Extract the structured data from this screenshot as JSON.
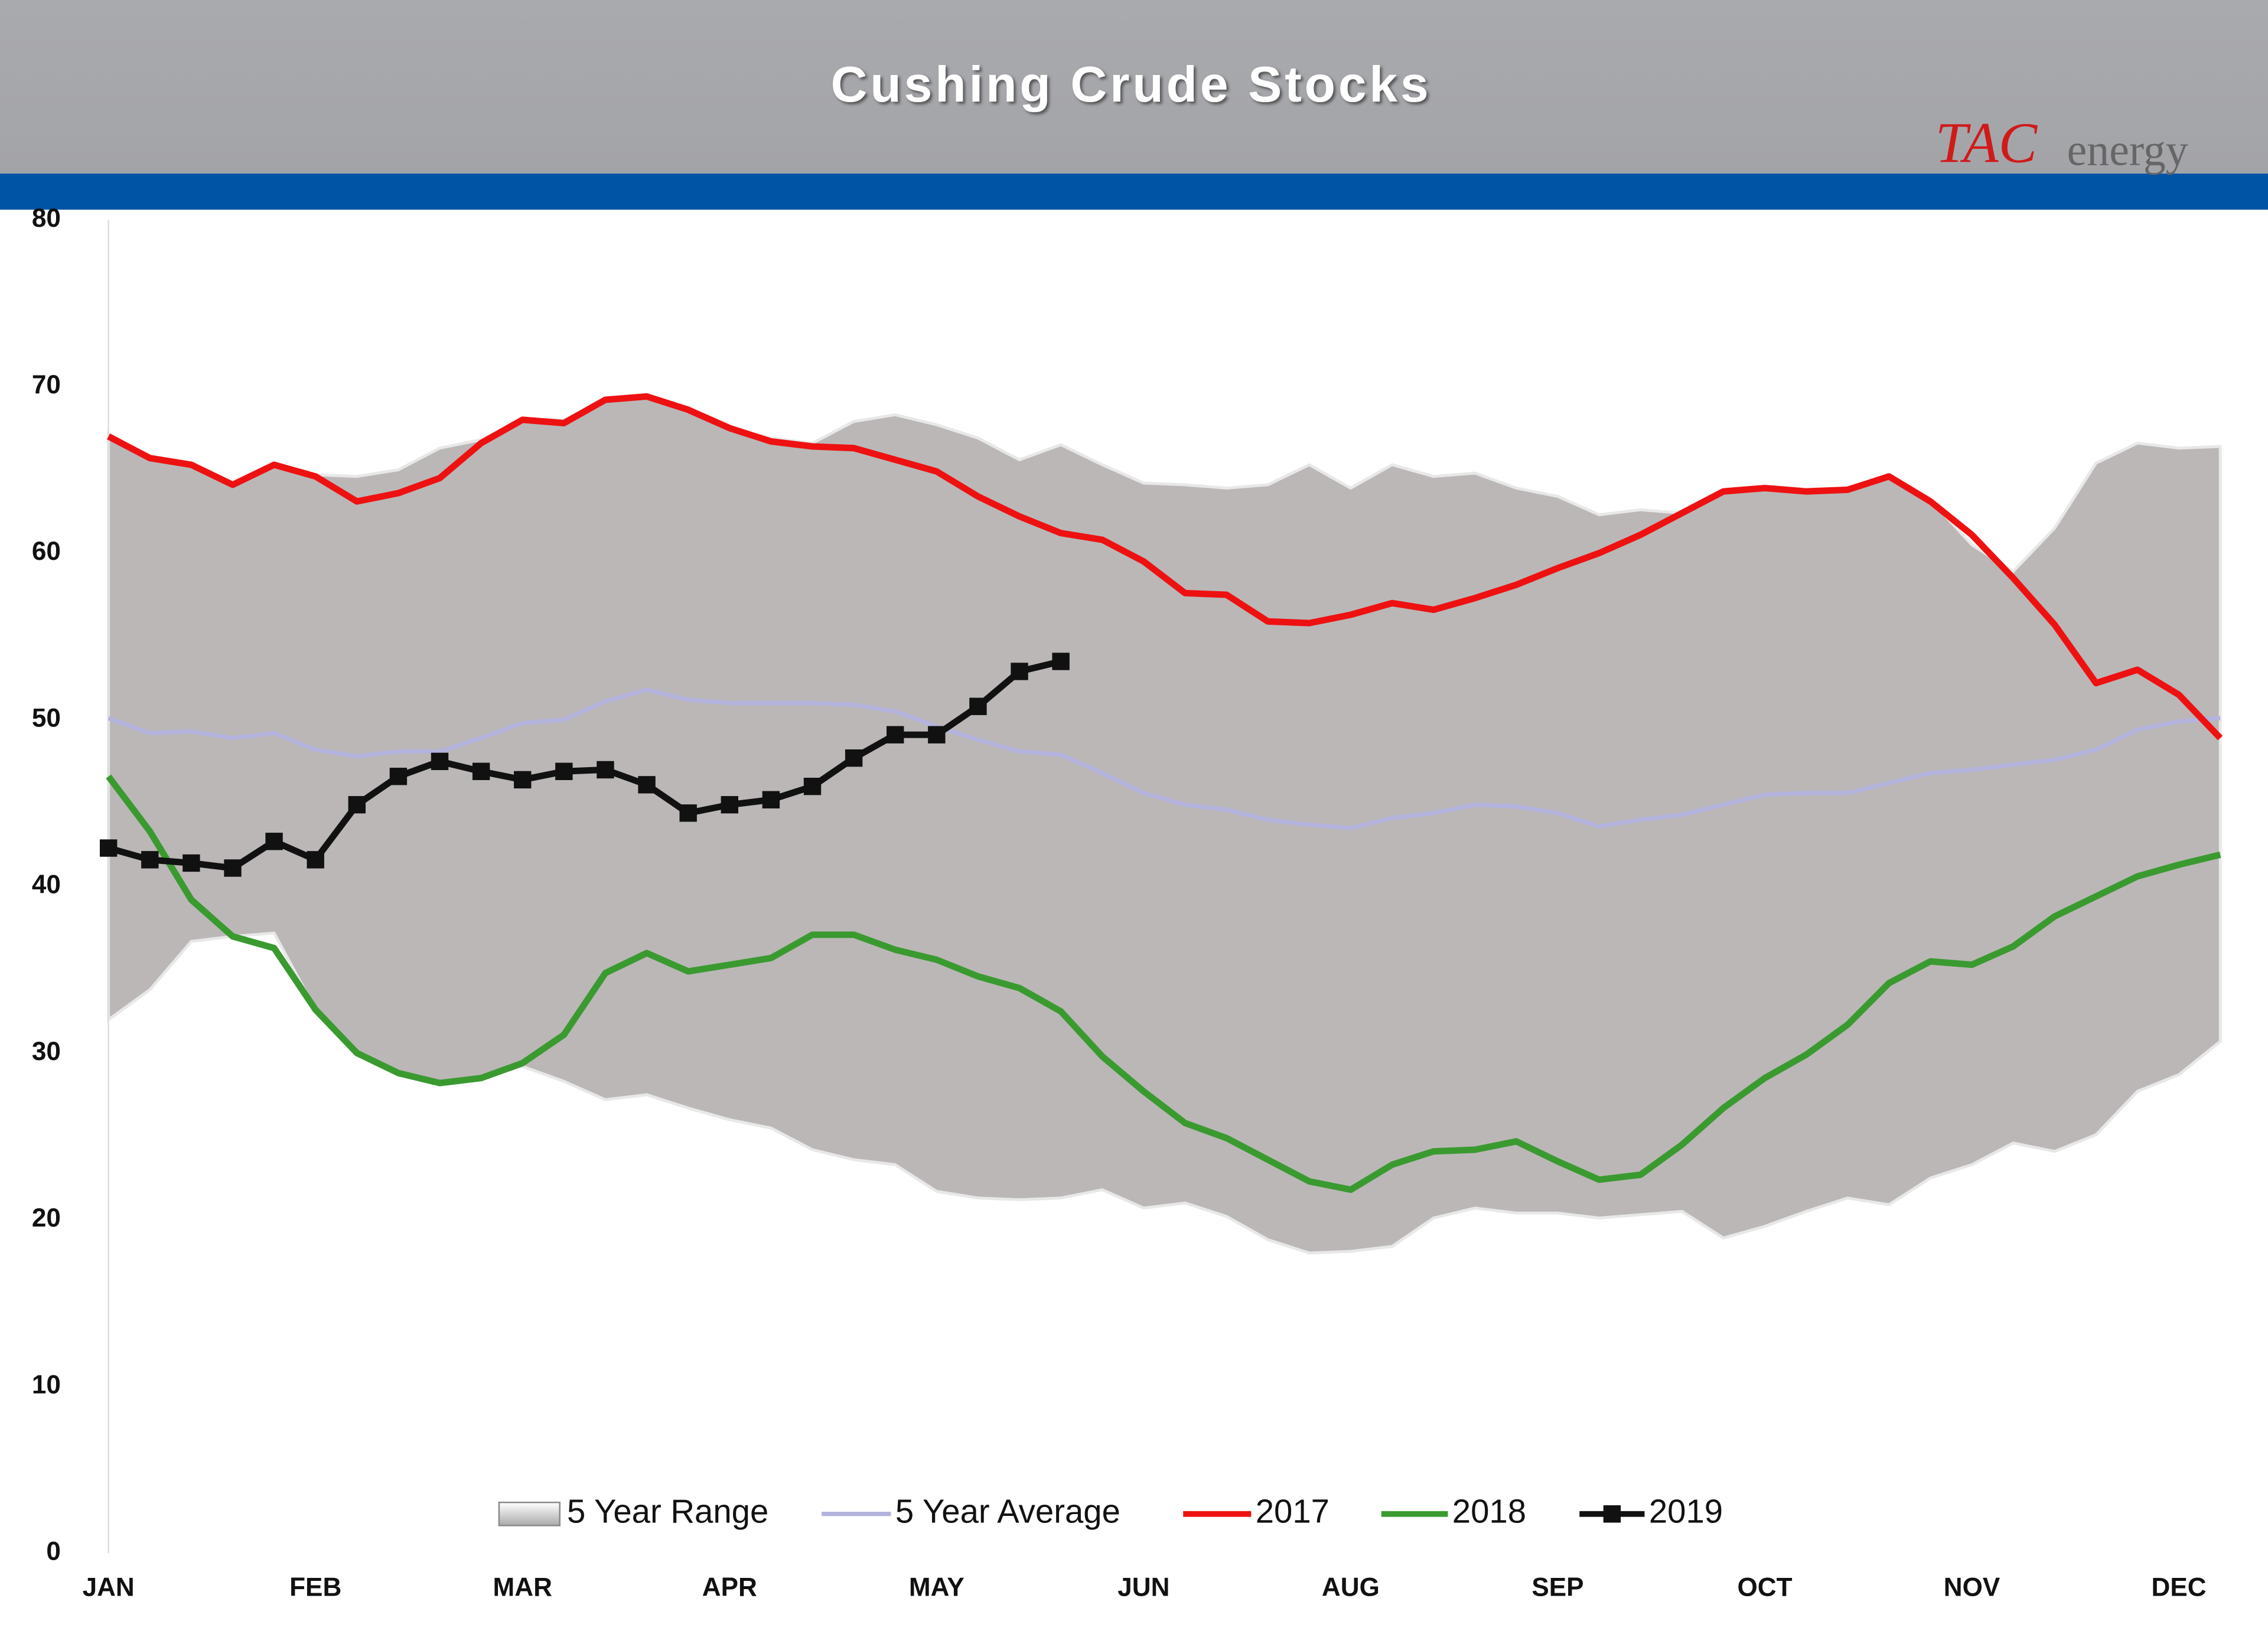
{
  "chart_data": {
    "type": "line",
    "title": "Cushing Crude Stocks",
    "logo": {
      "brand": "TAC",
      "suffix": "energy"
    },
    "categories": [
      "JAN",
      null,
      null,
      null,
      null,
      "FEB",
      null,
      null,
      null,
      null,
      "MAR",
      null,
      null,
      null,
      null,
      "APR",
      null,
      null,
      null,
      null,
      "MAY",
      null,
      null,
      null,
      null,
      "JUN",
      null,
      null,
      null,
      null,
      "AUG",
      null,
      null,
      null,
      null,
      "SEP",
      null,
      null,
      null,
      null,
      "OCT",
      null,
      null,
      null,
      null,
      "NOV",
      null,
      null,
      null,
      null,
      "DEC",
      null
    ],
    "ylim": [
      0,
      80
    ],
    "yticks": [
      0,
      10,
      20,
      30,
      40,
      50,
      60,
      70,
      80
    ],
    "grid": false,
    "range": {
      "name": "5 Year Range",
      "color": "#bbb7b7",
      "high": [
        67.2,
        65.7,
        65.3,
        64.1,
        65.3,
        64.7,
        64.6,
        65.0,
        66.3,
        66.8,
        68.0,
        68.0,
        69.2,
        69.4,
        68.6,
        67.5,
        66.9,
        66.6,
        67.9,
        68.3,
        67.7,
        66.9,
        65.6,
        66.5,
        65.3,
        64.2,
        64.1,
        63.9,
        64.1,
        65.3,
        63.9,
        65.3,
        64.6,
        64.8,
        63.9,
        63.4,
        62.3,
        62.6,
        62.4,
        63.8,
        64.0,
        63.7,
        63.8,
        64.7,
        63.2,
        60.5,
        58.9,
        61.5,
        65.4,
        66.6,
        66.3,
        66.4
      ],
      "low": [
        32.0,
        33.8,
        36.7,
        37.0,
        37.2,
        32.6,
        30.0,
        28.8,
        28.2,
        28.5,
        29.2,
        28.3,
        27.2,
        27.5,
        26.7,
        26.0,
        25.5,
        24.2,
        23.6,
        23.3,
        21.7,
        21.3,
        21.2,
        21.3,
        21.8,
        20.7,
        21.0,
        20.2,
        18.8,
        18.0,
        18.1,
        18.4,
        20.1,
        20.7,
        20.4,
        20.4,
        20.1,
        20.3,
        20.5,
        18.9,
        19.6,
        20.5,
        21.3,
        20.9,
        22.5,
        23.3,
        24.6,
        24.1,
        25.1,
        27.7,
        28.7,
        30.7
      ]
    },
    "series": [
      {
        "name": "5 Year Average",
        "color": "#b3b3dd",
        "values": [
          50.1,
          49.2,
          49.3,
          48.9,
          49.2,
          48.2,
          47.8,
          48.1,
          48.1,
          48.9,
          49.8,
          50.0,
          51.1,
          51.8,
          51.2,
          51.0,
          51.0,
          51.0,
          50.9,
          50.5,
          49.6,
          48.8,
          48.1,
          47.9,
          46.8,
          45.6,
          44.9,
          44.6,
          44.0,
          43.7,
          43.5,
          44.1,
          44.4,
          44.9,
          44.8,
          44.4,
          43.6,
          44.0,
          44.3,
          44.9,
          45.5,
          45.6,
          45.6,
          46.2,
          46.8,
          47.0,
          47.3,
          47.6,
          48.2,
          49.4,
          49.9,
          50.1
        ]
      },
      {
        "name": "2017",
        "color": "#ee1111",
        "values": [
          67.0,
          65.7,
          65.3,
          64.1,
          65.3,
          64.6,
          63.1,
          63.6,
          64.5,
          66.6,
          68.0,
          67.8,
          69.2,
          69.4,
          68.6,
          67.5,
          66.7,
          66.4,
          66.3,
          65.6,
          64.9,
          63.4,
          62.2,
          61.2,
          60.8,
          59.5,
          57.6,
          57.5,
          55.9,
          55.8,
          56.3,
          57.0,
          56.6,
          57.3,
          58.1,
          59.1,
          60.0,
          61.1,
          62.4,
          63.7,
          63.9,
          63.7,
          63.8,
          64.6,
          63.1,
          61.1,
          58.5,
          55.7,
          52.2,
          53.0,
          51.5,
          48.9
        ]
      },
      {
        "name": "2018",
        "color": "#3a9a30",
        "values": [
          46.6,
          43.3,
          39.2,
          37.0,
          36.3,
          32.6,
          30.0,
          28.8,
          28.2,
          28.5,
          29.4,
          31.1,
          34.8,
          36.0,
          34.9,
          35.3,
          35.7,
          37.1,
          37.1,
          36.2,
          35.6,
          34.6,
          33.9,
          32.5,
          29.8,
          27.7,
          25.8,
          24.9,
          23.6,
          22.3,
          21.8,
          23.3,
          24.1,
          24.2,
          24.7,
          23.5,
          22.4,
          22.7,
          24.5,
          26.7,
          28.5,
          29.9,
          31.7,
          34.2,
          35.5,
          35.3,
          36.4,
          38.2,
          39.4,
          40.6,
          41.3,
          41.9
        ]
      },
      {
        "name": "2019",
        "color": "#111111",
        "marker": "square",
        "values": [
          42.3,
          41.6,
          41.4,
          41.1,
          42.7,
          41.6,
          44.9,
          46.6,
          47.5,
          46.9,
          46.4,
          46.9,
          47.0,
          46.1,
          44.4,
          44.9,
          45.2,
          46.0,
          47.7,
          49.1,
          49.1,
          50.8,
          52.9,
          53.5,
          null,
          null,
          null,
          null,
          null,
          null,
          null,
          null,
          null,
          null,
          null,
          null,
          null,
          null,
          null,
          null,
          null,
          null,
          null,
          null,
          null,
          null,
          null,
          null,
          null,
          null,
          null,
          null
        ]
      }
    ]
  }
}
